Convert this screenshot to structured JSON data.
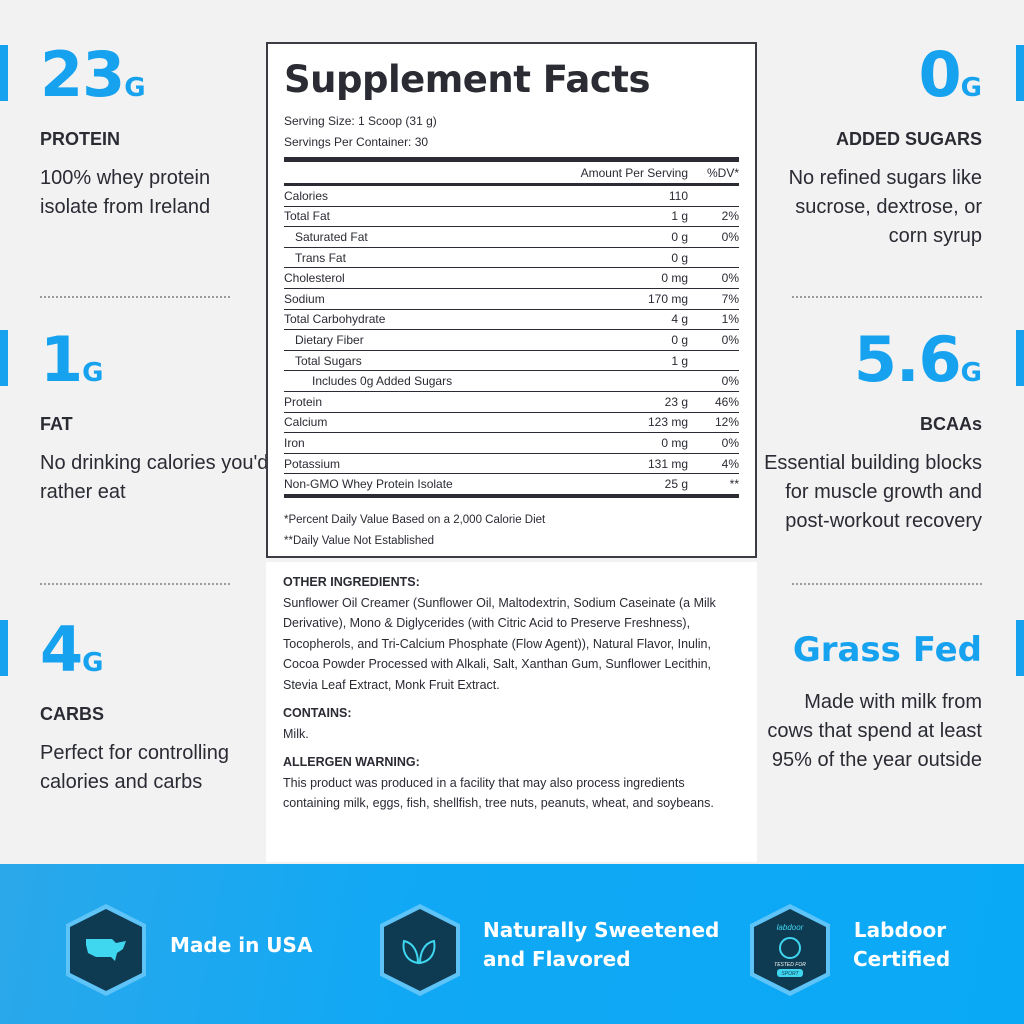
{
  "left_stats": [
    {
      "value": "23",
      "unit": "G",
      "label": "PROTEIN",
      "desc": "100% whey protein isolate from Ireland"
    },
    {
      "value": "1",
      "unit": "G",
      "label": "FAT",
      "desc": "No drinking calories you'd rather eat"
    },
    {
      "value": "4",
      "unit": "G",
      "label": "CARBS",
      "desc": "Perfect for controlling calories and carbs"
    }
  ],
  "right_stats": [
    {
      "value": "0",
      "unit": "G",
      "label": "ADDED SUGARS",
      "desc": "No refined sugars like sucrose, dextrose, or corn syrup"
    },
    {
      "value": "5.6",
      "unit": "G",
      "label": "BCAAs",
      "desc": "Essential building blocks for muscle growth and post-workout recovery"
    },
    {
      "value": "Grass Fed",
      "unit": "",
      "label": "",
      "desc": "Made with milk from cows that spend at least 95% of the year outside"
    }
  ],
  "facts": {
    "title": "Supplement Facts",
    "serving_size": "Serving Size: 1 Scoop (31 g)",
    "servings": "Servings Per Container: 30",
    "col_amount": "Amount Per Serving",
    "col_dv": "%DV*",
    "rows": [
      {
        "name": "Calories",
        "amount": "110",
        "dv": "",
        "indent": 0
      },
      {
        "name": "Total Fat",
        "amount": "1 g",
        "dv": "2%",
        "indent": 0
      },
      {
        "name": "Saturated Fat",
        "amount": "0 g",
        "dv": "0%",
        "indent": 1
      },
      {
        "name": "Trans Fat",
        "amount": "0 g",
        "dv": "",
        "indent": 1
      },
      {
        "name": "Cholesterol",
        "amount": "0 mg",
        "dv": "0%",
        "indent": 0
      },
      {
        "name": "Sodium",
        "amount": "170 mg",
        "dv": "7%",
        "indent": 0
      },
      {
        "name": "Total Carbohydrate",
        "amount": "4 g",
        "dv": "1%",
        "indent": 0
      },
      {
        "name": "Dietary Fiber",
        "amount": "0 g",
        "dv": "0%",
        "indent": 1
      },
      {
        "name": "Total Sugars",
        "amount": "1 g",
        "dv": "",
        "indent": 1
      },
      {
        "name": "Includes 0g Added Sugars",
        "amount": "",
        "dv": "0%",
        "indent": 2
      },
      {
        "name": "Protein",
        "amount": "23 g",
        "dv": "46%",
        "indent": 0
      },
      {
        "name": "Calcium",
        "amount": "123 mg",
        "dv": "12%",
        "indent": 0
      },
      {
        "name": "Iron",
        "amount": "0 mg",
        "dv": "0%",
        "indent": 0
      },
      {
        "name": "Potassium",
        "amount": "131 mg",
        "dv": "4%",
        "indent": 0
      },
      {
        "name": "Non-GMO Whey Protein Isolate",
        "amount": "25 g",
        "dv": "**",
        "indent": 0
      }
    ],
    "foot1": "*Percent Daily Value Based on a 2,000 Calorie Diet",
    "foot2": "**Daily Value Not Established"
  },
  "ingredients": {
    "h1": "OTHER INGREDIENTS:",
    "t1": "Sunflower Oil Creamer (Sunflower Oil, Maltodextrin, Sodium Caseinate (a Milk Derivative), Mono & Diglycerides (with Citric Acid to Preserve Freshness), Tocopherols, and Tri-Calcium Phosphate (Flow Agent)), Natural Flavor, Inulin, Cocoa Powder Processed with Alkali, Salt, Xanthan Gum, Sunflower Lecithin, Stevia Leaf Extract, Monk Fruit Extract.",
    "h2": "CONTAINS:",
    "t2": "Milk.",
    "h3": "ALLERGEN WARNING:",
    "t3": "This product was produced in a facility that may also process ingredients containing milk, eggs, fish, shellfish, tree nuts, peanuts, wheat, and soybeans."
  },
  "badges": [
    {
      "icon": "usa-map-icon",
      "text1": "Made in USA",
      "text2": ""
    },
    {
      "icon": "leaves-icon",
      "text1": "Naturally Sweetened",
      "text2": "and Flavored"
    },
    {
      "icon": "labdoor-icon",
      "text1": "Labdoor",
      "text2": "Certified",
      "logo_text": "labdoor TESTED FOR SPORT"
    }
  ],
  "colors": {
    "accent": "#16a2ee",
    "text": "#2a2b33",
    "banner": "#10a8f5",
    "hex": "#0e3a52"
  }
}
